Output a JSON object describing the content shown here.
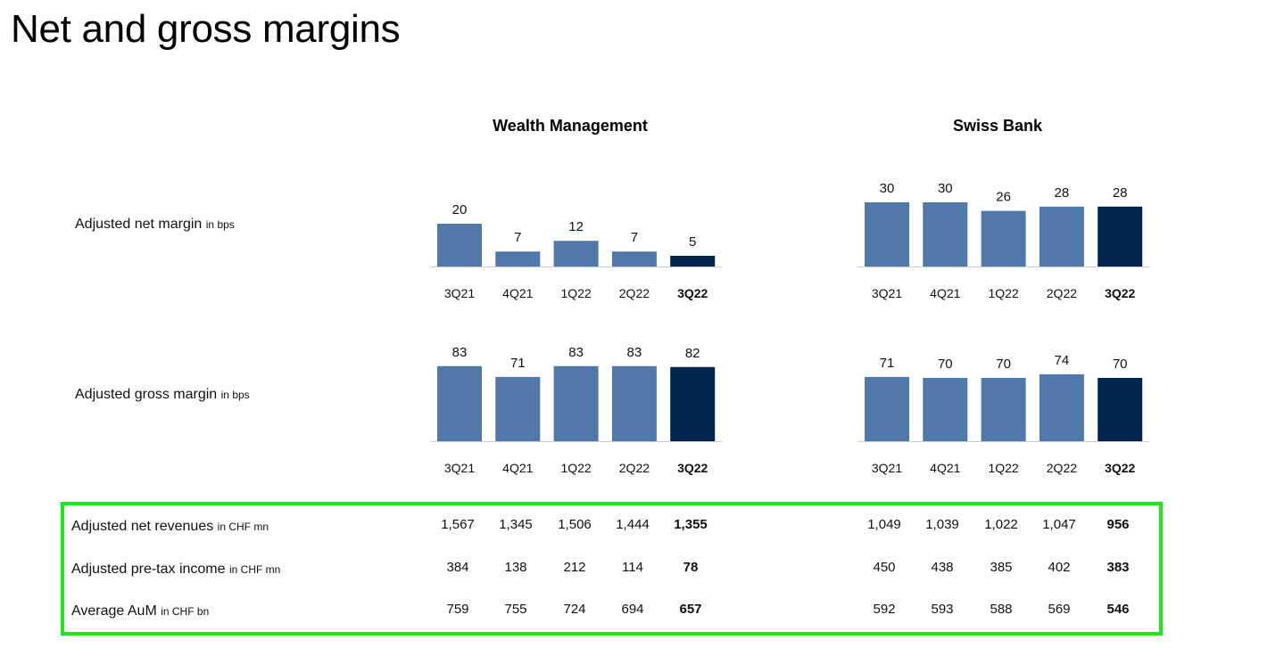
{
  "page": {
    "title": "Net and gross margins"
  },
  "segments": [
    {
      "name": "Wealth Management"
    },
    {
      "name": "Swiss Bank"
    }
  ],
  "rows": [
    {
      "label": "Adjusted net margin",
      "unit": "in bps"
    },
    {
      "label": "Adjusted gross margin",
      "unit": "in bps"
    }
  ],
  "colors": {
    "bar": "#5079aa",
    "bar_current": "#00264d",
    "axis": "#cccccc",
    "highlight": "#1ee61e"
  },
  "chart_data": [
    {
      "type": "bar",
      "title": "Wealth Management",
      "subtitle": "Adjusted net margin in bps",
      "categories": [
        "3Q21",
        "4Q21",
        "1Q22",
        "2Q22",
        "3Q22"
      ],
      "values": [
        20,
        7,
        12,
        7,
        5
      ],
      "highlight_index": 4
    },
    {
      "type": "bar",
      "title": "Swiss Bank",
      "subtitle": "Adjusted net margin in bps",
      "categories": [
        "3Q21",
        "4Q21",
        "1Q22",
        "2Q22",
        "3Q22"
      ],
      "values": [
        30,
        30,
        26,
        28,
        28
      ],
      "highlight_index": 4
    },
    {
      "type": "bar",
      "title": "Wealth Management",
      "subtitle": "Adjusted gross margin in bps",
      "categories": [
        "3Q21",
        "4Q21",
        "1Q22",
        "2Q22",
        "3Q22"
      ],
      "values": [
        83,
        71,
        83,
        83,
        82
      ],
      "highlight_index": 4
    },
    {
      "type": "bar",
      "title": "Swiss Bank",
      "subtitle": "Adjusted gross margin in bps",
      "categories": [
        "3Q21",
        "4Q21",
        "1Q22",
        "2Q22",
        "3Q22"
      ],
      "values": [
        71,
        70,
        70,
        74,
        70
      ],
      "highlight_index": 4
    }
  ],
  "table": {
    "rows": [
      {
        "label": "Adjusted net revenues",
        "unit": "in CHF mn",
        "wm": [
          "1,567",
          "1,345",
          "1,506",
          "1,444",
          "1,355"
        ],
        "sb": [
          "1,049",
          "1,039",
          "1,022",
          "1,047",
          "956"
        ]
      },
      {
        "label": "Adjusted pre-tax income",
        "unit": "in CHF mn",
        "wm": [
          "384",
          "138",
          "212",
          "114",
          "78"
        ],
        "sb": [
          "450",
          "438",
          "385",
          "402",
          "383"
        ]
      },
      {
        "label": "Average AuM",
        "unit": "in CHF bn",
        "wm": [
          "759",
          "755",
          "724",
          "694",
          "657"
        ],
        "sb": [
          "592",
          "593",
          "588",
          "569",
          "546"
        ]
      }
    ]
  }
}
